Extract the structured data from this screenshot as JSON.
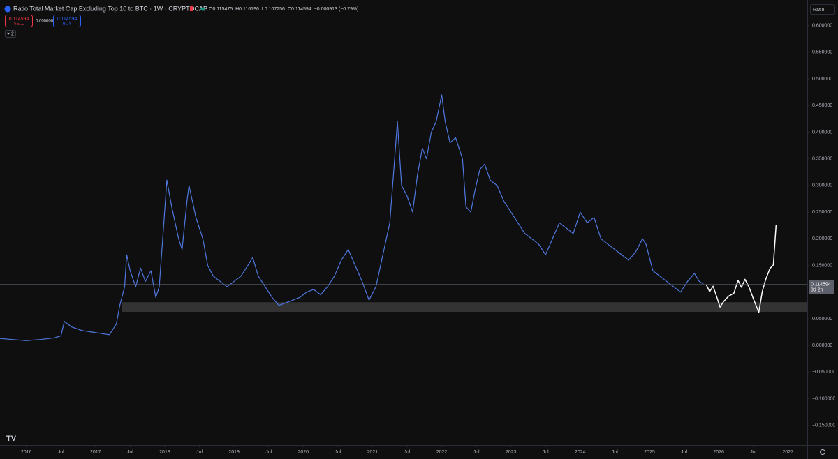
{
  "header": {
    "title": "Ratio Total Market Cap Excluding Top 10 to BTC · 1W · CRYPTOCAP",
    "ohlc": [
      "O0.115475",
      "H0.116196",
      "L0.107256",
      "C0.114594",
      "−0.000913 (−0.79%)"
    ],
    "sell": {
      "price": "0.114594",
      "label": "SELL"
    },
    "spread": "0.000000",
    "buy": {
      "price": "0.114594",
      "label": "BUY"
    },
    "indicators": "2",
    "axis_label": "Ratio"
  },
  "chart_data": {
    "type": "line",
    "xlim": [
      2015.62,
      2027.28
    ],
    "ylim": [
      -0.187,
      0.648
    ],
    "xticks": [
      2016,
      {
        "value": 2016.5,
        "label": "Jul"
      },
      2017,
      {
        "value": 2017.5,
        "label": "Jul"
      },
      2018,
      {
        "value": 2018.5,
        "label": "Jul"
      },
      2019,
      {
        "value": 2019.5,
        "label": "Jul"
      },
      2020,
      {
        "value": 2020.5,
        "label": "Jul"
      },
      2021,
      {
        "value": 2021.5,
        "label": "Jul"
      },
      2022,
      {
        "value": 2022.5,
        "label": "Jul"
      },
      2023,
      {
        "value": 2023.5,
        "label": "Jul"
      },
      2024,
      {
        "value": 2024.5,
        "label": "Jul"
      },
      2025,
      {
        "value": 2025.5,
        "label": "Jul"
      },
      2026,
      {
        "value": 2026.5,
        "label": "Jul"
      },
      2027
    ],
    "yticks": [
      {
        "value": 0.6,
        "label": "0.600000"
      },
      {
        "value": 0.55,
        "label": "0.550000"
      },
      {
        "value": 0.5,
        "label": "0.500000"
      },
      {
        "value": 0.45,
        "label": "0.450000"
      },
      {
        "value": 0.4,
        "label": "0.400000"
      },
      {
        "value": 0.35,
        "label": "0.350000"
      },
      {
        "value": 0.3,
        "label": "0.300000"
      },
      {
        "value": 0.25,
        "label": "0.250000"
      },
      {
        "value": 0.2,
        "label": "0.200000"
      },
      {
        "value": 0.15,
        "label": "0.150000"
      },
      {
        "value": 0.1,
        "label": "0.100000"
      },
      {
        "value": 0.05,
        "label": "0.050000"
      },
      {
        "value": 0,
        "label": "0.000000"
      },
      {
        "value": -0.05,
        "label": "−0.050000"
      },
      {
        "value": -0.1,
        "label": "−0.100000"
      },
      {
        "value": -0.15,
        "label": "−0.150000"
      }
    ],
    "grid": false,
    "series": [
      {
        "color": "#4f78e0",
        "x": [
          2015.62,
          2015.8,
          2016.0,
          2016.2,
          2016.4,
          2016.5,
          2016.55,
          2016.65,
          2016.8,
          2016.95,
          2017.1,
          2017.2,
          2017.3,
          2017.35,
          2017.42,
          2017.45,
          2017.5,
          2017.58,
          2017.65,
          2017.72,
          2017.8,
          2017.87,
          2017.92,
          2017.97,
          2018.03,
          2018.1,
          2018.2,
          2018.25,
          2018.32,
          2018.35,
          2018.45,
          2018.55,
          2018.62,
          2018.7,
          2018.8,
          2018.9,
          2019.0,
          2019.1,
          2019.2,
          2019.27,
          2019.35,
          2019.45,
          2019.55,
          2019.65,
          2019.75,
          2019.85,
          2019.95,
          2020.05,
          2020.15,
          2020.25,
          2020.35,
          2020.45,
          2020.55,
          2020.65,
          2020.75,
          2020.85,
          2020.95,
          2021.05,
          2021.15,
          2021.25,
          2021.32,
          2021.36,
          2021.42,
          2021.5,
          2021.58,
          2021.65,
          2021.72,
          2021.78,
          2021.85,
          2021.92,
          2022.0,
          2022.05,
          2022.12,
          2022.2,
          2022.3,
          2022.35,
          2022.42,
          2022.48,
          2022.55,
          2022.62,
          2022.7,
          2022.8,
          2022.9,
          2023.0,
          2023.1,
          2023.2,
          2023.3,
          2023.4,
          2023.5,
          2023.6,
          2023.7,
          2023.8,
          2023.9,
          2024.0,
          2024.1,
          2024.2,
          2024.3,
          2024.4,
          2024.5,
          2024.6,
          2024.7,
          2024.8,
          2024.9,
          2024.95,
          2025.05,
          2025.15,
          2025.25,
          2025.35,
          2025.45,
          2025.55,
          2025.65,
          2025.72,
          2025.78
        ],
        "values": [
          0.013,
          0.011,
          0.009,
          0.011,
          0.014,
          0.018,
          0.045,
          0.035,
          0.028,
          0.025,
          0.022,
          0.02,
          0.04,
          0.075,
          0.11,
          0.17,
          0.14,
          0.11,
          0.145,
          0.12,
          0.14,
          0.09,
          0.11,
          0.2,
          0.31,
          0.26,
          0.2,
          0.18,
          0.27,
          0.3,
          0.24,
          0.2,
          0.15,
          0.13,
          0.12,
          0.11,
          0.12,
          0.13,
          0.15,
          0.165,
          0.13,
          0.11,
          0.09,
          0.075,
          0.08,
          0.085,
          0.09,
          0.1,
          0.105,
          0.095,
          0.11,
          0.13,
          0.16,
          0.18,
          0.15,
          0.12,
          0.085,
          0.11,
          0.17,
          0.23,
          0.35,
          0.42,
          0.3,
          0.28,
          0.25,
          0.32,
          0.37,
          0.35,
          0.4,
          0.42,
          0.47,
          0.42,
          0.38,
          0.39,
          0.35,
          0.26,
          0.25,
          0.29,
          0.33,
          0.34,
          0.31,
          0.3,
          0.27,
          0.25,
          0.23,
          0.21,
          0.2,
          0.19,
          0.17,
          0.2,
          0.23,
          0.22,
          0.21,
          0.25,
          0.23,
          0.24,
          0.2,
          0.19,
          0.18,
          0.17,
          0.16,
          0.175,
          0.2,
          0.19,
          0.14,
          0.13,
          0.12,
          0.11,
          0.1,
          0.12,
          0.135,
          0.12,
          0.115
        ]
      },
      {
        "color": "#ffffff",
        "x": [
          2025.82,
          2025.87,
          2025.92,
          2025.97,
          2026.02,
          2026.07,
          2026.14,
          2026.22,
          2026.28,
          2026.33,
          2026.38,
          2026.44,
          2026.5,
          2026.58,
          2026.63,
          2026.68,
          2026.74,
          2026.79,
          2026.83
        ],
        "values": [
          0.114,
          0.101,
          0.111,
          0.092,
          0.072,
          0.082,
          0.092,
          0.098,
          0.122,
          0.109,
          0.124,
          0.109,
          0.088,
          0.062,
          0.101,
          0.124,
          0.144,
          0.151,
          0.226
        ]
      }
    ],
    "support_zone": {
      "ylim": [
        0.063,
        0.081
      ],
      "xstart": 2017.38,
      "color": "#3a3a3a"
    },
    "last_price": {
      "value": 0.114594,
      "countdown": "3d 2h"
    }
  }
}
